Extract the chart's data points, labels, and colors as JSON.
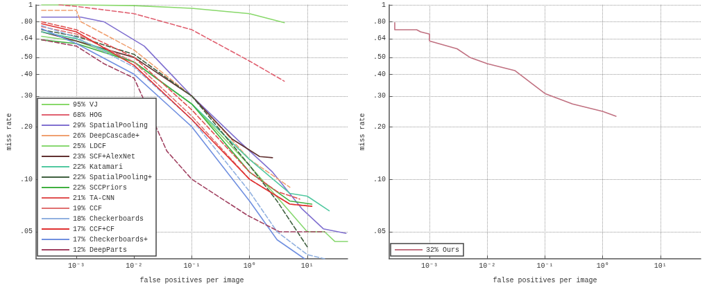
{
  "chart_data": [
    {
      "type": "line",
      "xlabel": "false positives per image",
      "ylabel": "miss rate",
      "log": "xy",
      "grid": true,
      "legend": "bottom left",
      "marker": "none",
      "xlim": [
        0.0002,
        50
      ],
      "ylim": [
        0.035,
        1
      ],
      "xticks": [
        {
          "value": 0.001,
          "label": "10⁻³"
        },
        {
          "value": 0.01,
          "label": "10⁻²"
        },
        {
          "value": 0.1,
          "label": "10⁻¹"
        },
        {
          "value": 1,
          "label": "10⁰"
        },
        {
          "value": 10,
          "label": "10¹"
        }
      ],
      "yticks": [
        {
          "value": 0.05,
          "label": ".05"
        },
        {
          "value": 0.1,
          "label": ".10"
        },
        {
          "value": 0.2,
          "label": ".20"
        },
        {
          "value": 0.3,
          "label": ".30"
        },
        {
          "value": 0.4,
          "label": ".40"
        },
        {
          "value": 0.5,
          "label": ".50"
        },
        {
          "value": 0.64,
          "label": ".64"
        },
        {
          "value": 0.8,
          "label": ".80"
        },
        {
          "value": 1,
          "label": "1"
        }
      ],
      "series": [
        {
          "name": "95% VJ",
          "color": "#88d86a",
          "line_style": "solid",
          "x": [
            0.00025,
            0.001,
            0.01,
            0.1,
            1,
            4
          ],
          "values": [
            1,
            1,
            0.99,
            0.955,
            0.89,
            0.79
          ]
        },
        {
          "name": "68% HOG",
          "color": "#e06070",
          "line_style": "dashed",
          "x": [
            0.0005,
            0.001,
            0.01,
            0.1,
            1,
            4
          ],
          "values": [
            1,
            0.98,
            0.89,
            0.72,
            0.476,
            0.365
          ]
        },
        {
          "name": "29% SpatialPooling",
          "color": "#8070d0",
          "line_style": "solid",
          "x": [
            0.00025,
            0.0012,
            0.003,
            0.015,
            0.1,
            0.65,
            2.5,
            8,
            19,
            47
          ],
          "values": [
            0.85,
            0.85,
            0.8,
            0.58,
            0.3,
            0.166,
            0.11,
            0.068,
            0.052,
            0.049
          ]
        },
        {
          "name": "26% DeepCascade+",
          "color": "#f0a070",
          "line_style": "dashed",
          "x": [
            0.00025,
            0.001,
            0.0012,
            0.01,
            0.1,
            1,
            5
          ],
          "values": [
            0.93,
            0.93,
            0.8,
            0.55,
            0.3,
            0.13,
            0.09
          ]
        },
        {
          "name": "25% LDCF",
          "color": "#88d870",
          "line_style": "solid",
          "x": [
            0.00025,
            0.001,
            0.01,
            0.1,
            1,
            10,
            20,
            30,
            50
          ],
          "values": [
            0.66,
            0.62,
            0.47,
            0.27,
            0.12,
            0.05,
            0.05,
            0.044,
            0.044
          ]
        },
        {
          "name": "23% SCF+AlexNet",
          "color": "#603030",
          "line_style": "solid",
          "x": [
            0.00025,
            0.001,
            0.01,
            0.1,
            0.5,
            1.5,
            2.5
          ],
          "values": [
            0.7,
            0.62,
            0.5,
            0.3,
            0.17,
            0.135,
            0.133
          ]
        },
        {
          "name": "22% Katamari",
          "color": "#50c8a0",
          "line_style": "solid",
          "x": [
            0.00025,
            0.001,
            0.01,
            0.1,
            1,
            5,
            10,
            24
          ],
          "values": [
            0.7,
            0.64,
            0.47,
            0.27,
            0.13,
            0.083,
            0.08,
            0.066
          ]
        },
        {
          "name": "22% SpatialPooling+",
          "color": "#406040",
          "line_style": "dashed",
          "x": [
            0.00025,
            0.001,
            0.01,
            0.1,
            1,
            3,
            10
          ],
          "values": [
            0.72,
            0.66,
            0.52,
            0.3,
            0.12,
            0.075,
            0.041
          ]
        },
        {
          "name": "22% SCCPriors",
          "color": "#40b040",
          "line_style": "solid",
          "x": [
            0.00025,
            0.001,
            0.01,
            0.1,
            1,
            5,
            12
          ],
          "values": [
            0.63,
            0.6,
            0.47,
            0.27,
            0.11,
            0.075,
            0.072
          ]
        },
        {
          "name": "21% TA-CNN",
          "color": "#e05050",
          "line_style": "dashed",
          "x": [
            0.00025,
            0.001,
            0.01,
            0.1,
            1,
            3,
            7.4
          ],
          "values": [
            0.8,
            0.72,
            0.5,
            0.25,
            0.11,
            0.085,
            0.077
          ]
        },
        {
          "name": "19% CCF",
          "color": "#e07070",
          "line_style": "dashed",
          "x": [
            0.00025,
            0.001,
            0.01,
            0.1,
            1,
            5,
            12
          ],
          "values": [
            0.75,
            0.68,
            0.47,
            0.23,
            0.1,
            0.072,
            0.07
          ]
        },
        {
          "name": "18% Checkerboards",
          "color": "#90b0e0",
          "line_style": "dashed",
          "x": [
            0.00025,
            0.001,
            0.01,
            0.1,
            1,
            3,
            10,
            20
          ],
          "values": [
            0.76,
            0.65,
            0.44,
            0.22,
            0.085,
            0.05,
            0.037,
            0.035
          ]
        },
        {
          "name": "17% CCF+CF",
          "color": "#e03030",
          "line_style": "solid",
          "x": [
            0.00025,
            0.001,
            0.01,
            0.1,
            1,
            5,
            12
          ],
          "values": [
            0.78,
            0.7,
            0.45,
            0.22,
            0.1,
            0.072,
            0.07
          ]
        },
        {
          "name": "17% Checkerboards+",
          "color": "#7090e0",
          "line_style": "solid",
          "x": [
            0.00025,
            0.001,
            0.01,
            0.1,
            1,
            3,
            9
          ],
          "values": [
            0.73,
            0.6,
            0.4,
            0.2,
            0.075,
            0.045,
            0.035
          ]
        },
        {
          "name": "12% DeepParts",
          "color": "#a04060",
          "line_style": "dashed",
          "x": [
            0.00025,
            0.001,
            0.003,
            0.01,
            0.037,
            0.1,
            0.93,
            3.3,
            20
          ],
          "values": [
            0.63,
            0.58,
            0.46,
            0.38,
            0.145,
            0.1,
            0.062,
            0.05,
            0.05
          ]
        }
      ]
    },
    {
      "type": "line",
      "xlabel": "false positives per image",
      "ylabel": "miss rate",
      "log": "xy",
      "grid": true,
      "legend": "bottom left",
      "marker": "none",
      "xlim": [
        0.0002,
        50
      ],
      "ylim": [
        0.035,
        1
      ],
      "xticks": [
        {
          "value": 0.001,
          "label": "10⁻³"
        },
        {
          "value": 0.01,
          "label": "10⁻²"
        },
        {
          "value": 0.1,
          "label": "10⁻¹"
        },
        {
          "value": 1,
          "label": "10⁰"
        },
        {
          "value": 10,
          "label": "10¹"
        }
      ],
      "yticks": [
        {
          "value": 0.05,
          "label": ".05"
        },
        {
          "value": 0.1,
          "label": ".10"
        },
        {
          "value": 0.2,
          "label": ".20"
        },
        {
          "value": 0.3,
          "label": ".30"
        },
        {
          "value": 0.4,
          "label": ".40"
        },
        {
          "value": 0.5,
          "label": ".50"
        },
        {
          "value": 0.64,
          "label": ".64"
        },
        {
          "value": 0.8,
          "label": ".80"
        },
        {
          "value": 1,
          "label": "1"
        }
      ],
      "series": [
        {
          "name": "32% Ours",
          "color": "#c07080",
          "line_style": "solid",
          "x": [
            0.00025,
            0.00025,
            0.0006,
            0.0007,
            0.001,
            0.001,
            0.003,
            0.005,
            0.01,
            0.03,
            0.1,
            0.3,
            1,
            1.7
          ],
          "values": [
            0.79,
            0.72,
            0.72,
            0.7,
            0.68,
            0.62,
            0.56,
            0.5,
            0.46,
            0.42,
            0.31,
            0.27,
            0.245,
            0.23
          ]
        }
      ]
    }
  ]
}
